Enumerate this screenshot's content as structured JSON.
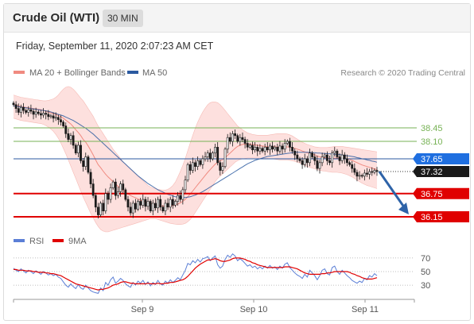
{
  "header": {
    "instrument": "Crude Oil (WTI)",
    "interval": "30 MIN",
    "timestamp": "Friday, September 11, 2020 2:07:23 AM CET"
  },
  "legend": {
    "ma20_label": "MA 20 + Bollinger Bands",
    "ma50_label": "MA 50",
    "credit": "Research © 2020 Trading Central",
    "rsi_label": "RSI",
    "rsi_ma_label": "9MA"
  },
  "colors": {
    "ma20": "#f08a80",
    "band_fill": "#fde0de",
    "ma50": "#2b5aa0",
    "candle": "#1a1a1a",
    "resistance": "#77b255",
    "support": "#e00000",
    "pivot_line": "#2b5aa0",
    "pivot_tag": "#1f6fe0",
    "last_tag": "#1a1a1a",
    "arrow": "#2e63a8",
    "rsi": "#5b7fd6",
    "rsi_ma": "#e00000"
  },
  "chart_data": [
    {
      "type": "candlestick",
      "interval": "30 MIN",
      "x_tick_labels": [
        "Sep 9",
        "Sep 10",
        "Sep 11"
      ],
      "levels": [
        {
          "role": "resistance",
          "value": 38.45,
          "label": "38.45"
        },
        {
          "role": "resistance",
          "value": 38.1,
          "label": "38.10"
        },
        {
          "role": "pivot",
          "value": 37.65,
          "label": "37.65"
        },
        {
          "role": "last",
          "value": 37.32,
          "label": "37.32"
        },
        {
          "role": "support",
          "value": 36.75,
          "label": "36.75"
        },
        {
          "role": "support",
          "value": 36.15,
          "label": "36.15"
        }
      ],
      "close": [
        39.05,
        38.95,
        38.85,
        38.98,
        38.9,
        38.85,
        38.92,
        38.88,
        38.8,
        38.86,
        38.82,
        38.78,
        38.83,
        38.8,
        38.74,
        38.76,
        38.7,
        38.72,
        38.66,
        38.6,
        38.5,
        38.3,
        38.15,
        38.25,
        38.0,
        37.8,
        38.0,
        37.6,
        37.45,
        37.7,
        37.3,
        37.0,
        36.7,
        36.4,
        36.2,
        36.5,
        36.3,
        36.75,
        36.6,
        36.9,
        37.05,
        36.7,
        36.8,
        37.0,
        36.85,
        36.6,
        36.4,
        36.25,
        36.5,
        36.35,
        36.55,
        36.45,
        36.6,
        36.42,
        36.55,
        36.3,
        36.5,
        36.38,
        36.6,
        36.4,
        36.3,
        36.5,
        36.4,
        36.6,
        36.45,
        36.55,
        36.7,
        36.6,
        36.85,
        37.1,
        37.5,
        37.35,
        37.55,
        37.45,
        37.6,
        37.5,
        37.65,
        37.7,
        37.8,
        37.65,
        37.8,
        37.95,
        37.55,
        37.35,
        37.45,
        37.9,
        38.2,
        38.1,
        38.3,
        38.25,
        38.1,
        38.2,
        38.15,
        38.05,
        37.95,
        38.0,
        37.88,
        37.95,
        37.85,
        37.92,
        37.85,
        37.95,
        37.88,
        37.98,
        37.9,
        37.95,
        37.85,
        37.98,
        37.9,
        38.05,
        38.1,
        37.95,
        37.85,
        37.75,
        37.65,
        37.6,
        37.5,
        37.65,
        37.55,
        37.8,
        37.7,
        37.6,
        37.4,
        37.55,
        37.7,
        37.75,
        37.6,
        37.55,
        37.8,
        37.85,
        37.7,
        37.6,
        37.75,
        37.65,
        37.55,
        37.5,
        37.4,
        37.3,
        37.2,
        37.22,
        37.2,
        37.28,
        37.25,
        37.32,
        37.3,
        37.35,
        37.32
      ],
      "ma20": [
        39.06,
        39.04,
        39.02,
        39.0,
        38.99,
        38.98,
        38.97,
        38.96,
        38.95,
        38.94,
        38.93,
        38.92,
        38.9,
        38.88,
        38.86,
        38.84,
        38.82,
        38.8,
        38.77,
        38.74,
        38.7,
        38.65,
        38.6,
        38.55,
        38.48,
        38.4,
        38.33,
        38.25,
        38.15,
        38.08,
        37.98,
        37.87,
        37.75,
        37.62,
        37.5,
        37.42,
        37.33,
        37.25,
        37.18,
        37.12,
        37.06,
        37.0,
        36.94,
        36.88,
        36.83,
        36.78,
        36.74,
        36.7,
        36.67,
        36.64,
        36.61,
        36.58,
        36.56,
        36.54,
        36.52,
        36.5,
        36.48,
        36.46,
        36.45,
        36.44,
        36.43,
        36.42,
        36.42,
        36.43,
        36.44,
        36.46,
        36.48,
        36.51,
        36.55,
        36.6,
        36.67,
        36.74,
        36.82,
        36.9,
        36.98,
        37.06,
        37.14,
        37.22,
        37.3,
        37.37,
        37.44,
        37.51,
        37.56,
        37.6,
        37.63,
        37.68,
        37.74,
        37.8,
        37.86,
        37.92,
        37.97,
        38.0,
        38.02,
        38.03,
        38.03,
        38.03,
        38.02,
        38.01,
        38.0,
        37.99,
        37.98,
        37.97,
        37.96,
        37.96,
        37.96,
        37.96,
        37.95,
        37.95,
        37.95,
        37.95,
        37.96,
        37.95,
        37.94,
        37.92,
        37.9,
        37.88,
        37.85,
        37.83,
        37.8,
        37.79,
        37.77,
        37.75,
        37.72,
        37.7,
        37.69,
        37.68,
        37.67,
        37.66,
        37.66,
        37.67,
        37.67,
        37.67,
        37.67,
        37.66,
        37.65,
        37.63,
        37.61,
        37.58,
        37.55,
        37.52,
        37.49,
        37.47,
        37.45,
        37.43,
        37.41,
        37.39,
        37.37
      ],
      "upper_band": [
        39.3,
        39.28,
        39.26,
        39.24,
        39.23,
        39.22,
        39.21,
        39.2,
        39.19,
        39.18,
        39.17,
        39.16,
        39.15,
        39.15,
        39.16,
        39.18,
        39.2,
        39.24,
        39.3,
        39.38,
        39.45,
        39.5,
        39.52,
        39.5,
        39.45,
        39.38,
        39.3,
        39.22,
        39.15,
        39.05,
        38.95,
        38.85,
        38.75,
        38.62,
        38.5,
        38.4,
        38.3,
        38.2,
        38.1,
        38.0,
        37.9,
        37.82,
        37.74,
        37.66,
        37.58,
        37.5,
        37.44,
        37.38,
        37.32,
        37.26,
        37.2,
        37.14,
        37.08,
        37.02,
        36.96,
        36.92,
        36.9,
        36.88,
        36.86,
        36.85,
        36.84,
        36.84,
        36.86,
        36.9,
        36.96,
        37.05,
        37.18,
        37.32,
        37.48,
        37.66,
        37.86,
        38.06,
        38.26,
        38.44,
        38.6,
        38.74,
        38.86,
        38.96,
        39.05,
        39.1,
        39.12,
        39.12,
        39.1,
        39.05,
        38.98,
        38.9,
        38.82,
        38.74,
        38.66,
        38.58,
        38.5,
        38.45,
        38.4,
        38.36,
        38.32,
        38.3,
        38.28,
        38.27,
        38.26,
        38.26,
        38.26,
        38.26,
        38.26,
        38.27,
        38.28,
        38.29,
        38.3,
        38.3,
        38.3,
        38.3,
        38.29,
        38.27,
        38.24,
        38.2,
        38.16,
        38.12,
        38.08,
        38.05,
        38.02,
        38.0,
        37.98,
        37.96,
        37.95,
        37.94,
        37.94,
        37.94,
        37.94,
        37.95,
        37.96,
        37.97,
        37.97,
        37.97,
        37.97,
        37.96,
        37.95,
        37.94,
        37.93,
        37.92,
        37.91,
        37.9,
        37.89,
        37.88,
        37.87,
        37.86,
        37.85,
        37.84,
        37.83
      ],
      "lower_band": [
        38.7,
        38.68,
        38.66,
        38.64,
        38.63,
        38.62,
        38.61,
        38.6,
        38.59,
        38.58,
        38.57,
        38.56,
        38.54,
        38.51,
        38.47,
        38.42,
        38.36,
        38.28,
        38.18,
        38.06,
        37.92,
        37.78,
        37.62,
        37.46,
        37.3,
        37.14,
        36.98,
        36.82,
        36.66,
        36.52,
        36.38,
        36.24,
        36.12,
        36.0,
        35.9,
        35.82,
        35.78,
        35.76,
        35.76,
        35.78,
        35.8,
        35.82,
        35.84,
        35.86,
        35.88,
        35.9,
        35.92,
        35.94,
        35.96,
        35.98,
        36.0,
        36.02,
        36.04,
        36.06,
        36.08,
        36.1,
        36.1,
        36.1,
        36.08,
        36.06,
        36.04,
        36.02,
        36.0,
        35.98,
        35.97,
        35.96,
        35.95,
        35.95,
        35.96,
        35.98,
        36.02,
        36.08,
        36.16,
        36.26,
        36.36,
        36.46,
        36.56,
        36.66,
        36.76,
        36.86,
        36.96,
        37.06,
        37.14,
        37.2,
        37.26,
        37.32,
        37.38,
        37.44,
        37.5,
        37.56,
        37.6,
        37.63,
        37.65,
        37.66,
        37.67,
        37.67,
        37.67,
        37.67,
        37.67,
        37.67,
        37.66,
        37.66,
        37.66,
        37.65,
        37.65,
        37.64,
        37.63,
        37.62,
        37.62,
        37.62,
        37.62,
        37.61,
        37.6,
        37.58,
        37.56,
        37.54,
        37.51,
        37.48,
        37.45,
        37.43,
        37.41,
        37.39,
        37.37,
        37.35,
        37.34,
        37.33,
        37.32,
        37.31,
        37.3,
        37.3,
        37.3,
        37.29,
        37.28,
        37.26,
        37.24,
        37.21,
        37.18,
        37.14,
        37.1,
        37.06,
        37.02,
        36.99,
        36.96,
        36.94,
        36.92,
        36.9,
        36.88
      ],
      "ma50": [
        39.02,
        39.01,
        39.0,
        38.99,
        38.98,
        38.97,
        38.96,
        38.95,
        38.94,
        38.93,
        38.92,
        38.91,
        38.9,
        38.89,
        38.88,
        38.86,
        38.84,
        38.82,
        38.8,
        38.78,
        38.76,
        38.73,
        38.7,
        38.67,
        38.64,
        38.6,
        38.56,
        38.52,
        38.48,
        38.44,
        38.39,
        38.34,
        38.29,
        38.23,
        38.17,
        38.11,
        38.05,
        37.99,
        37.93,
        37.87,
        37.81,
        37.75,
        37.69,
        37.63,
        37.57,
        37.51,
        37.45,
        37.39,
        37.33,
        37.27,
        37.21,
        37.16,
        37.11,
        37.06,
        37.01,
        36.97,
        36.93,
        36.89,
        36.85,
        36.82,
        36.79,
        36.76,
        36.73,
        36.71,
        36.69,
        36.67,
        36.66,
        36.65,
        36.65,
        36.65,
        36.66,
        36.67,
        36.69,
        36.71,
        36.74,
        36.77,
        36.8,
        36.84,
        36.88,
        36.92,
        36.96,
        37.0,
        37.04,
        37.08,
        37.12,
        37.16,
        37.2,
        37.24,
        37.28,
        37.32,
        37.36,
        37.4,
        37.44,
        37.48,
        37.52,
        37.55,
        37.58,
        37.61,
        37.63,
        37.65,
        37.67,
        37.69,
        37.71,
        37.72,
        37.73,
        37.74,
        37.75,
        37.76,
        37.77,
        37.78,
        37.79,
        37.8,
        37.81,
        37.82,
        37.82,
        37.82,
        37.82,
        37.82,
        37.82,
        37.82,
        37.81,
        37.81,
        37.8,
        37.8,
        37.79,
        37.79,
        37.78,
        37.78,
        37.77,
        37.77,
        37.76,
        37.76,
        37.75,
        37.74,
        37.73,
        37.72,
        37.71,
        37.7,
        37.68,
        37.67,
        37.65,
        37.64,
        37.62,
        37.61,
        37.59,
        37.58,
        37.56
      ],
      "projection": {
        "from": 37.32,
        "to": 36.15
      }
    },
    {
      "type": "line",
      "name": "RSI",
      "levels": [
        70,
        50,
        30
      ],
      "ylim": [
        15,
        78
      ],
      "rsi": [
        55,
        52,
        50,
        54,
        51,
        48,
        52,
        50,
        47,
        51,
        49,
        46,
        50,
        48,
        45,
        47,
        44,
        46,
        42,
        40,
        35,
        30,
        27,
        32,
        28,
        25,
        31,
        26,
        24,
        30,
        26,
        22,
        20,
        19,
        18,
        26,
        22,
        34,
        30,
        38,
        42,
        33,
        36,
        40,
        37,
        32,
        29,
        27,
        34,
        30,
        36,
        33,
        37,
        31,
        35,
        29,
        34,
        31,
        37,
        32,
        30,
        36,
        33,
        38,
        34,
        37,
        41,
        38,
        45,
        52,
        62,
        60,
        66,
        63,
        68,
        64,
        69,
        70,
        72,
        66,
        70,
        73,
        60,
        55,
        58,
        68,
        74,
        71,
        76,
        73,
        66,
        69,
        66,
        62,
        58,
        60,
        56,
        58,
        54,
        57,
        54,
        58,
        55,
        59,
        55,
        57,
        53,
        58,
        55,
        61,
        63,
        56,
        52,
        48,
        45,
        43,
        40,
        46,
        42,
        52,
        48,
        44,
        38,
        44,
        52,
        54,
        47,
        45,
        56,
        58,
        50,
        46,
        52,
        48,
        44,
        41,
        37,
        35,
        33,
        36,
        34,
        40,
        38,
        44,
        42,
        47,
        44
      ],
      "rsi_ma": [
        53,
        53,
        52,
        52,
        52,
        51,
        51,
        51,
        50,
        50,
        49,
        49,
        49,
        48,
        48,
        47,
        47,
        46,
        45,
        44,
        42,
        40,
        38,
        36,
        34,
        32,
        31,
        30,
        29,
        28,
        27,
        26,
        25,
        24,
        23,
        24,
        24,
        25,
        26,
        28,
        30,
        31,
        32,
        34,
        35,
        35,
        34,
        33,
        33,
        32,
        32,
        32,
        32,
        32,
        33,
        32,
        32,
        32,
        33,
        32,
        32,
        33,
        33,
        34,
        34,
        35,
        36,
        37,
        38,
        40,
        43,
        47,
        51,
        55,
        58,
        61,
        63,
        65,
        67,
        67,
        68,
        69,
        68,
        66,
        65,
        65,
        66,
        67,
        69,
        70,
        70,
        70,
        69,
        68,
        66,
        65,
        63,
        62,
        60,
        59,
        58,
        57,
        56,
        56,
        56,
        56,
        56,
        56,
        56,
        57,
        57,
        57,
        56,
        55,
        54,
        52,
        50,
        48,
        47,
        46,
        46,
        46,
        46,
        46,
        47,
        47,
        48,
        48,
        49,
        50,
        50,
        50,
        50,
        50,
        50,
        49,
        47,
        46,
        44,
        43,
        41,
        40,
        39,
        39,
        39,
        40,
        41
      ]
    }
  ]
}
